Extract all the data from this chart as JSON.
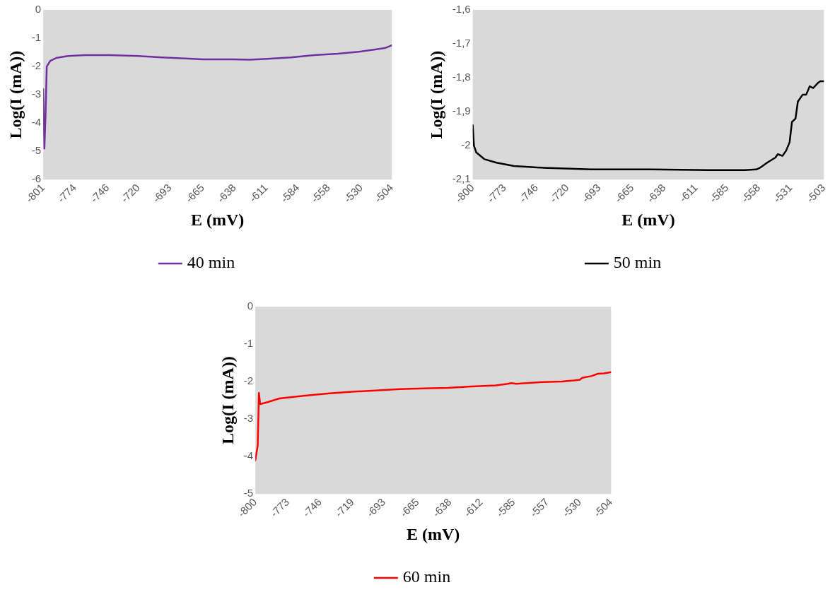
{
  "chart_data": [
    {
      "type": "line",
      "xlabel": "E (mV)",
      "ylabel": "Log(I (mA))",
      "legend": "bottom",
      "grid": false,
      "x": [
        -801,
        -800,
        -799,
        -798,
        -795,
        -790,
        -780,
        -765,
        -745,
        -720,
        -700,
        -680,
        -665,
        -640,
        -625,
        -610,
        -590,
        -570,
        -550,
        -530,
        -515,
        -510,
        -504
      ],
      "series": [
        {
          "name": "40 min",
          "color": "#7030a0",
          "values": [
            -2.8,
            -4.9,
            -3.7,
            -2.0,
            -1.8,
            -1.7,
            -1.63,
            -1.6,
            -1.6,
            -1.63,
            -1.68,
            -1.72,
            -1.75,
            -1.75,
            -1.76,
            -1.73,
            -1.68,
            -1.6,
            -1.55,
            -1.47,
            -1.38,
            -1.35,
            -1.25
          ]
        }
      ],
      "xlim": [
        -801,
        -504
      ],
      "xticks": [
        -801,
        -774,
        -746,
        -720,
        -693,
        -665,
        -638,
        -611,
        -584,
        -558,
        -530,
        -504
      ],
      "ylim": [
        -6,
        0
      ],
      "yticks": [
        -6,
        -5,
        -4,
        -3,
        -2,
        -1,
        0
      ]
    },
    {
      "type": "line",
      "xlabel": "E (mV)",
      "ylabel": "Log(I (mA))",
      "legend": "bottom",
      "grid": false,
      "x": [
        -800,
        -799,
        -797,
        -790,
        -780,
        -765,
        -740,
        -700,
        -650,
        -600,
        -570,
        -560,
        -557,
        -551,
        -544,
        -542,
        -538,
        -535,
        -532,
        -530,
        -527,
        -525,
        -521,
        -518,
        -515,
        -512,
        -508,
        -506,
        -503
      ],
      "series": [
        {
          "name": "50 min",
          "color": "#000000",
          "values": [
            -1.94,
            -2.0,
            -2.02,
            -2.04,
            -2.05,
            -2.06,
            -2.065,
            -2.07,
            -2.07,
            -2.072,
            -2.072,
            -2.07,
            -2.065,
            -2.05,
            -2.035,
            -2.025,
            -2.03,
            -2.015,
            -1.99,
            -1.93,
            -1.92,
            -1.87,
            -1.85,
            -1.85,
            -1.825,
            -1.83,
            -1.815,
            -1.81,
            -1.81
          ]
        }
      ],
      "xlim": [
        -800,
        -503
      ],
      "xticks": [
        -800,
        -773,
        -746,
        -720,
        -693,
        -665,
        -638,
        -611,
        -585,
        -558,
        -531,
        -503
      ],
      "ylim": [
        -2.1,
        -1.6
      ],
      "yticks": [
        {
          "value": -2.1,
          "label": "-2,1"
        },
        -2,
        {
          "value": -1.9,
          "label": "-1,9"
        },
        {
          "value": -1.8,
          "label": "-1,8"
        },
        {
          "value": -1.7,
          "label": "-1,7"
        },
        {
          "value": -1.6,
          "label": "-1,6"
        }
      ]
    },
    {
      "type": "line",
      "xlabel": "E (mV)",
      "ylabel": "Log(I (mA))",
      "legend": "bottom",
      "grid": false,
      "x": [
        -800,
        -798,
        -797,
        -796,
        -790,
        -780,
        -760,
        -740,
        -720,
        -700,
        -680,
        -660,
        -640,
        -620,
        -600,
        -590,
        -587,
        -583,
        -570,
        -560,
        -545,
        -535,
        -530,
        -528,
        -520,
        -515,
        -510,
        -504
      ],
      "series": [
        {
          "name": "60 min",
          "color": "#ff0000",
          "values": [
            -4.1,
            -3.7,
            -2.3,
            -2.6,
            -2.55,
            -2.45,
            -2.38,
            -2.32,
            -2.27,
            -2.24,
            -2.2,
            -2.18,
            -2.17,
            -2.13,
            -2.1,
            -2.06,
            -2.04,
            -2.06,
            -2.03,
            -2.01,
            -2.0,
            -1.97,
            -1.95,
            -1.9,
            -1.85,
            -1.79,
            -1.78,
            -1.75
          ]
        }
      ],
      "xlim": [
        -800,
        -504
      ],
      "xticks": [
        -800,
        -773,
        -746,
        -719,
        -693,
        -665,
        -638,
        -612,
        -585,
        -557,
        -530,
        -504
      ],
      "ylim": [
        -5,
        0
      ],
      "yticks": [
        -5,
        -4,
        -3,
        -2,
        -1,
        0
      ]
    }
  ]
}
